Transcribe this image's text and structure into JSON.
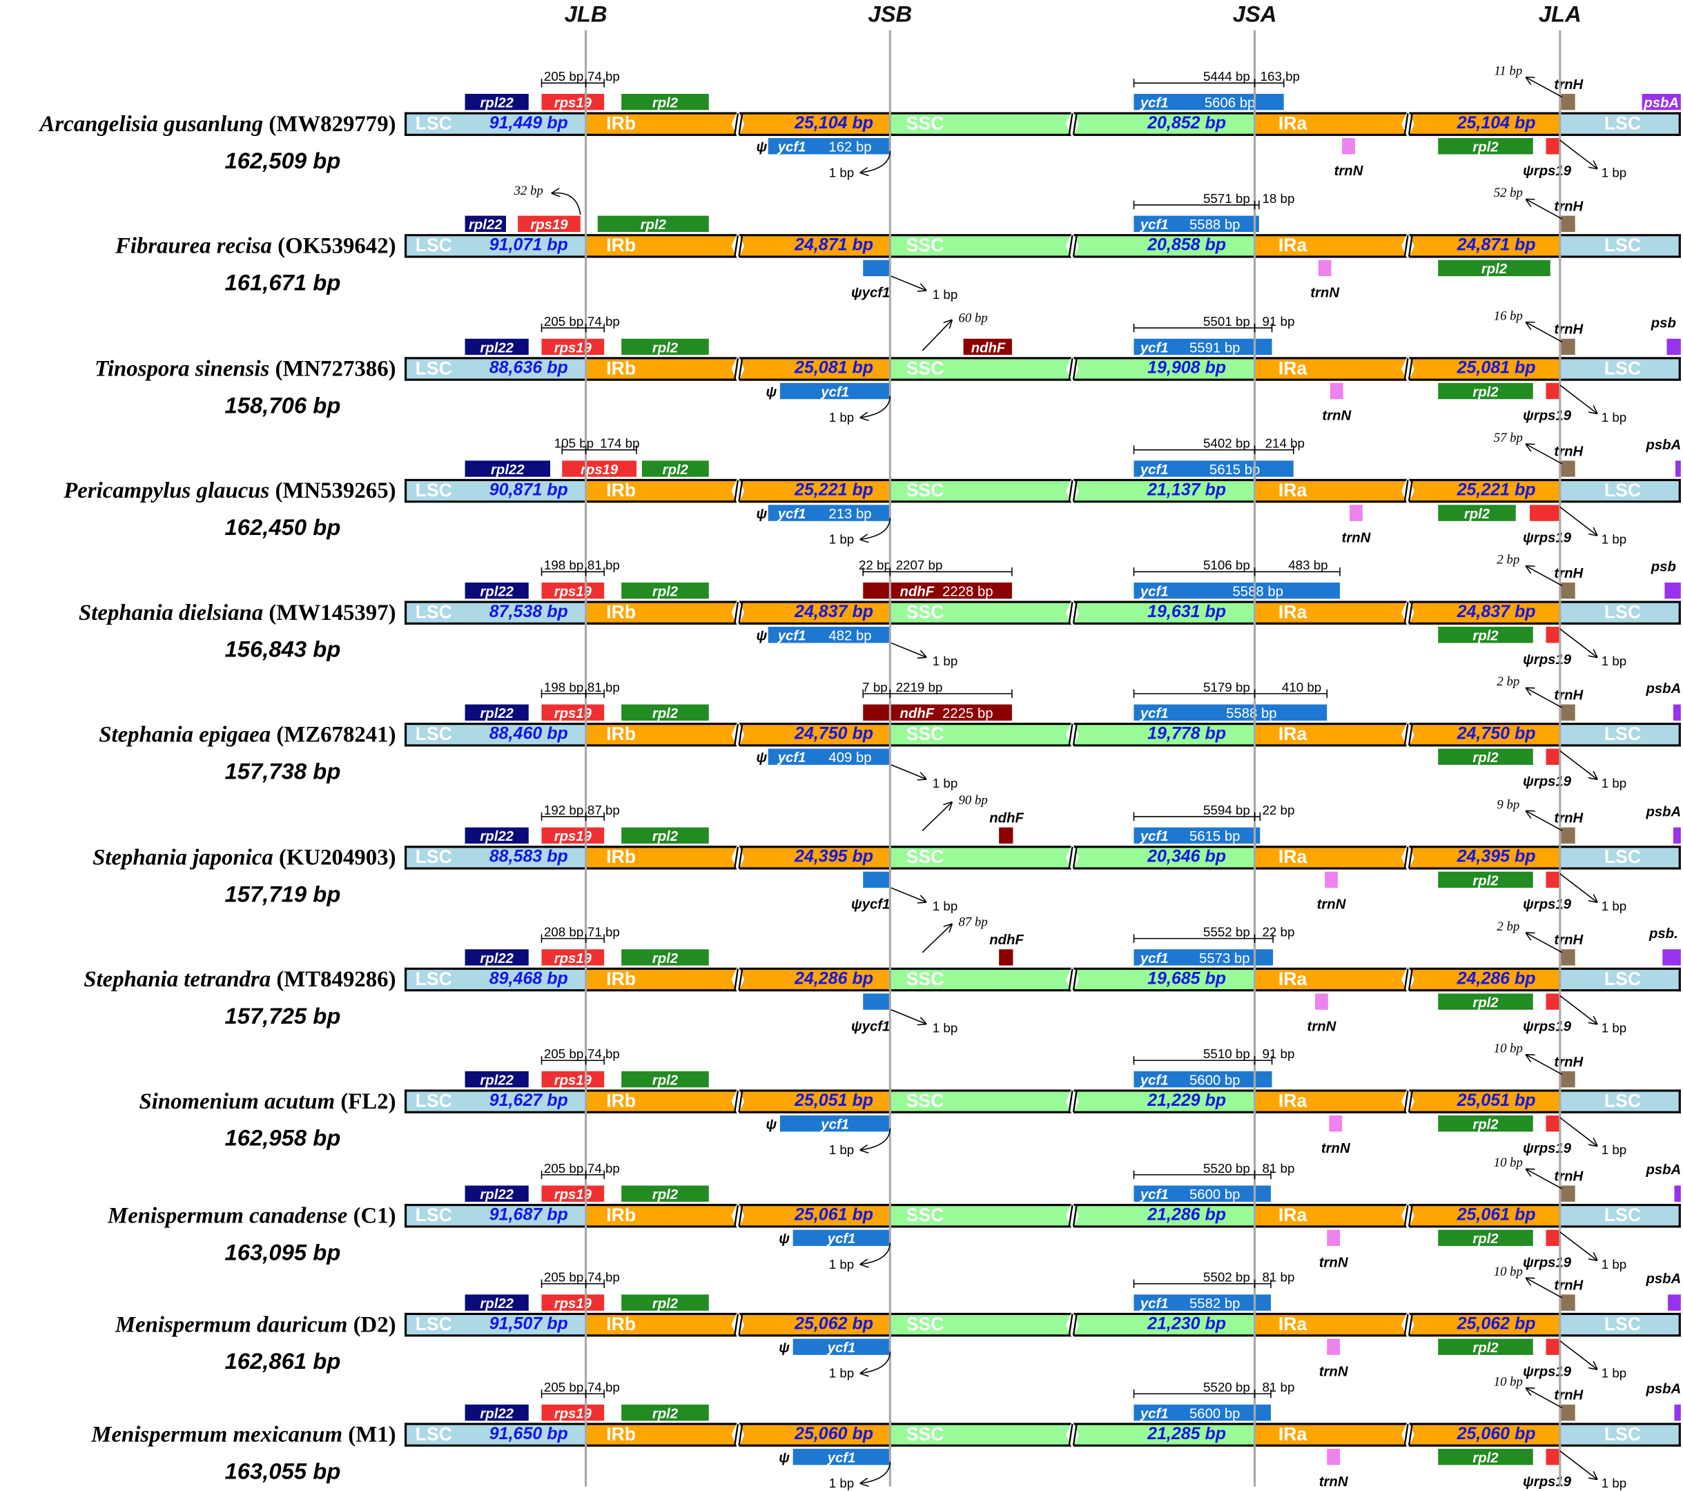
{
  "headers": [
    "JLB",
    "JSB",
    "JSA",
    "JLA"
  ],
  "regions": {
    "lsc": "LSC",
    "irb": "IRb",
    "ssc": "SSC",
    "ira": "IRa",
    "psi": "ψ"
  },
  "colors": {
    "lsc": "#add8e6",
    "ir": "#ffa500",
    "ssc": "#98fb98",
    "rpl22": "#0a0a7a",
    "rps19": "#f03030",
    "rpl2": "#228b22",
    "ycf1": "#1e78d2",
    "ndhF": "#8b0000",
    "trnH": "#8b7355",
    "trnN": "#ee82ee",
    "psbA": "#9932ec",
    "bp_text": "#1515e6",
    "junction_line": "#a8a8a8"
  },
  "rows": [
    {
      "species": "Arcangelisia gusanlung",
      "accession": "(MW829779)",
      "total": "162,509 bp",
      "lsc": "91,449 bp",
      "ir": "25,104 bp",
      "ssc": "20,852 bp",
      "jlb": {
        "rpl22": "rpl22",
        "rps19": "rps19",
        "rpl2": "rpl2",
        "dist": [
          "205 bp",
          "74 bp"
        ]
      },
      "jsb": {
        "gene": "ycf1",
        "len": "162 bp",
        "dist": "1 bp"
      },
      "jsa": {
        "gene": "ycf1",
        "len": "5606 bp",
        "dist": [
          "5444 bp",
          "163 bp"
        ],
        "trnN": "trnN"
      },
      "jla": {
        "dist": "11 bp",
        "trnH": "trnH",
        "psbA": "psbA",
        "rpl2": "rpl2",
        "rps19": "ψrps19",
        "rps19_dist": "1 bp"
      }
    },
    {
      "species": "Fibraurea recisa",
      "accession": "(OK539642)",
      "total": "161,671 bp",
      "lsc": "91,071 bp",
      "ir": "24,871 bp",
      "ssc": "20,858 bp",
      "jlb": {
        "rpl22": "rpl22",
        "rps19": "rps19",
        "rpl2": "rpl2",
        "dist": [
          "32 bp"
        ]
      },
      "jsb": {
        "gene": "ψycf1",
        "dist": "1 bp"
      },
      "jsa": {
        "gene": "ycf1",
        "len": "5588 bp",
        "dist": [
          "5571 bp",
          "18 bp"
        ],
        "trnN": "trnN"
      },
      "jla": {
        "dist": "52 bp",
        "trnH": "trnH",
        "rpl2": "rpl2"
      }
    },
    {
      "species": "Tinospora sinensis",
      "accession": "(MN727386)",
      "total": "158,706 bp",
      "lsc": "88,636 bp",
      "ir": "25,081 bp",
      "ssc": "19,908 bp",
      "jlb": {
        "rpl22": "rpl22",
        "rps19": "rps19",
        "rpl2": "rpl2",
        "dist": [
          "205 bp",
          "74 bp"
        ]
      },
      "jsb": {
        "gene": "ycf1",
        "dist": "1 bp",
        "ndhF": "ndhF",
        "ndhF_dist": "60 bp"
      },
      "jsa": {
        "gene": "ycf1",
        "len": "5591 bp",
        "dist": [
          "5501 bp",
          "91 bp"
        ],
        "trnN": "trnN"
      },
      "jla": {
        "dist": "16 bp",
        "trnH": "trnH",
        "psbA": "psb",
        "rpl2": "rpl2",
        "rps19": "ψrps19",
        "rps19_dist": "1 bp"
      }
    },
    {
      "species": "Pericampylus glaucus",
      "accession": "(MN539265)",
      "total": "162,450 bp",
      "lsc": "90,871 bp",
      "ir": "25,221 bp",
      "ssc": "21,137 bp",
      "jlb": {
        "rpl22": "rpl22",
        "rps19": "rps19",
        "rpl2": "rpl2",
        "dist": [
          "105 bp",
          "174 bp"
        ]
      },
      "jsb": {
        "gene": "ycf1",
        "len": "213 bp",
        "dist": "1 bp"
      },
      "jsa": {
        "gene": "ycf1",
        "len": "5615 bp",
        "dist": [
          "5402 bp",
          "214 bp"
        ],
        "trnN": "trnN"
      },
      "jla": {
        "dist": "57 bp",
        "trnH": "trnH",
        "psbA": "psbA",
        "rpl2": "rpl2",
        "rps19": "ψrps19",
        "rps19_dist": "1 bp"
      }
    },
    {
      "species": "Stephania dielsiana",
      "accession": "(MW145397)",
      "total": "156,843 bp",
      "lsc": "87,538 bp",
      "ir": "24,837 bp",
      "ssc": "19,631 bp",
      "jlb": {
        "rpl22": "rpl22",
        "rps19": "rps19",
        "rpl2": "rpl2",
        "dist": [
          "198 bp",
          "81 bp"
        ]
      },
      "jsb": {
        "gene": "ycf1",
        "len": "482 bp",
        "dist": "1 bp",
        "ndhF": "ndhF",
        "ndhF_len": "2228 bp",
        "ndhF_dist": [
          "22 bp",
          "2207 bp"
        ]
      },
      "jsa": {
        "gene": "ycf1",
        "len": "5588 bp",
        "dist": [
          "5106 bp",
          "483 bp"
        ]
      },
      "jla": {
        "dist": "2 bp",
        "trnH": "trnH",
        "psbA": "psb",
        "rpl2": "rpl2",
        "rps19": "ψrps19",
        "rps19_dist": "1 bp"
      }
    },
    {
      "species": "Stephania epigaea",
      "accession": "(MZ678241)",
      "total": "157,738 bp",
      "lsc": "88,460 bp",
      "ir": "24,750 bp",
      "ssc": "19,778 bp",
      "jlb": {
        "rpl22": "rpl22",
        "rps19": "rps19",
        "rpl2": "rpl2",
        "dist": [
          "198 bp",
          "81 bp"
        ]
      },
      "jsb": {
        "gene": "ycf1",
        "len": "409 bp",
        "dist": "1 bp",
        "ndhF": "ndhF",
        "ndhF_len": "2225 bp",
        "ndhF_dist": [
          "7 bp",
          "2219 bp"
        ]
      },
      "jsa": {
        "gene": "ycf1",
        "len": "5588 bp",
        "dist": [
          "5179 bp",
          "410 bp"
        ]
      },
      "jla": {
        "dist": "2 bp",
        "trnH": "trnH",
        "psbA": "psbA",
        "rpl2": "rpl2",
        "rps19": "ψrps19",
        "rps19_dist": "1 bp"
      }
    },
    {
      "species": "Stephania japonica",
      "accession": "(KU204903)",
      "total": "157,719 bp",
      "lsc": "88,583 bp",
      "ir": "24,395 bp",
      "ssc": "20,346 bp",
      "jlb": {
        "rpl22": "rpl22",
        "rps19": "rps19",
        "rpl2": "rpl2",
        "dist": [
          "192 bp",
          "87 bp"
        ]
      },
      "jsb": {
        "gene": "ψycf1",
        "dist": "1 bp",
        "ndhF": "ndhF",
        "ndhF_dist": "90 bp"
      },
      "jsa": {
        "gene": "ycf1",
        "len": "5615 bp",
        "dist": [
          "5594 bp",
          "22 bp"
        ],
        "trnN": "trnN"
      },
      "jla": {
        "dist": "9 bp",
        "trnH": "trnH",
        "psbA": "psbA",
        "rpl2": "rpl2",
        "rps19": "ψrps19",
        "rps19_dist": "1 bp"
      }
    },
    {
      "species": "Stephania tetrandra",
      "accession": "(MT849286)",
      "total": "157,725 bp",
      "lsc": "89,468 bp",
      "ir": "24,286 bp",
      "ssc": "19,685 bp",
      "jlb": {
        "rpl22": "rpl22",
        "rps19": "rps19",
        "rpl2": "rpl2",
        "dist": [
          "208 bp",
          "71 bp"
        ]
      },
      "jsb": {
        "gene": "ψycf1",
        "dist": "1 bp",
        "ndhF": "ndhF",
        "ndhF_dist": "87 bp"
      },
      "jsa": {
        "gene": "ycf1",
        "len": "5573 bp",
        "dist": [
          "5552 bp",
          "22 bp"
        ],
        "trnN": "trnN"
      },
      "jla": {
        "dist": "2 bp",
        "trnH": "trnH",
        "psbA": "psb.",
        "rpl2": "rpl2",
        "rps19": "ψrps19",
        "rps19_dist": "1 bp"
      }
    },
    {
      "species": "Sinomenium acutum",
      "accession": "(FL2)",
      "total": "162,958 bp",
      "lsc": "91,627 bp",
      "ir": "25,051 bp",
      "ssc": "21,229 bp",
      "jlb": {
        "rpl22": "rpl22",
        "rps19": "rps19",
        "rpl2": "rpl2",
        "dist": [
          "205 bp",
          "74 bp"
        ]
      },
      "jsb": {
        "gene": "ycf1",
        "dist": "1 bp"
      },
      "jsa": {
        "gene": "ycf1",
        "len": "5600 bp",
        "dist": [
          "5510 bp",
          "91 bp"
        ],
        "trnN": "trnN"
      },
      "jla": {
        "dist": "10 bp",
        "trnH": "trnH",
        "rpl2": "rpl2",
        "rps19": "ψrps19",
        "rps19_dist": "1 bp"
      }
    },
    {
      "species": "Menispermum canadense",
      "accession": "(C1)",
      "total": "163,095 bp",
      "lsc": "91,687 bp",
      "ir": "25,061 bp",
      "ssc": "21,286 bp",
      "jlb": {
        "rpl22": "rpl22",
        "rps19": "rps19",
        "rpl2": "rpl2",
        "dist": [
          "205 bp",
          "74 bp"
        ]
      },
      "jsb": {
        "gene": "ycf1",
        "dist": "1 bp"
      },
      "jsa": {
        "gene": "ycf1",
        "len": "5600 bp",
        "dist": [
          "5520 bp",
          "81 bp"
        ],
        "trnN": "trnN"
      },
      "jla": {
        "dist": "10 bp",
        "trnH": "trnH",
        "psbA": "psbA",
        "rpl2": "rpl2",
        "rps19": "ψrps19",
        "rps19_dist": "1 bp"
      }
    },
    {
      "species": "Menispermum dauricum",
      "accession": "(D2)",
      "total": "162,861 bp",
      "lsc": "91,507 bp",
      "ir": "25,062 bp",
      "ssc": "21,230 bp",
      "jlb": {
        "rpl22": "rpl22",
        "rps19": "rps19",
        "rpl2": "rpl2",
        "dist": [
          "205 bp",
          "74 bp"
        ]
      },
      "jsb": {
        "gene": "ycf1",
        "dist": "1 bp"
      },
      "jsa": {
        "gene": "ycf1",
        "len": "5582 bp",
        "dist": [
          "5502 bp",
          "81 bp"
        ],
        "trnN": "trnN"
      },
      "jla": {
        "dist": "10 bp",
        "trnH": "trnH",
        "psbA": "psbA",
        "rpl2": "rpl2",
        "rps19": "ψrps19",
        "rps19_dist": "1 bp"
      }
    },
    {
      "species": "Menispermum mexicanum",
      "accession": "(M1)",
      "total": "163,055 bp",
      "lsc": "91,650 bp",
      "ir": "25,060 bp",
      "ssc": "21,285 bp",
      "jlb": {
        "rpl22": "rpl22",
        "rps19": "rps19",
        "rpl2": "rpl2",
        "dist": [
          "205 bp",
          "74 bp"
        ]
      },
      "jsb": {
        "gene": "ycf1",
        "dist": "1 bp"
      },
      "jsa": {
        "gene": "ycf1",
        "len": "5600 bp",
        "dist": [
          "5520 bp",
          "81 bp"
        ],
        "trnN": "trnN"
      },
      "jla": {
        "dist": "10 bp",
        "trnH": "trnH",
        "psbA": "psbA",
        "rpl2": "rpl2",
        "rps19": "ψrps19",
        "rps19_dist": "1 bp"
      }
    }
  ]
}
